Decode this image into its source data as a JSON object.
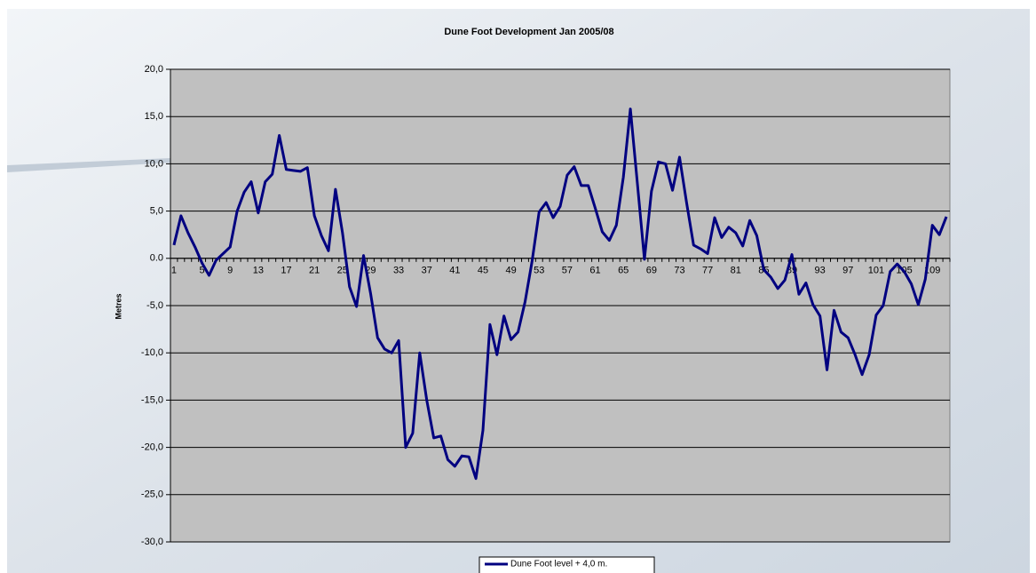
{
  "chart_data": {
    "type": "line",
    "title": "Dune Foot Development Jan 2005/08",
    "y_label": "Metres",
    "categories": [
      1,
      null,
      null,
      null,
      5,
      null,
      null,
      null,
      9,
      null,
      null,
      null,
      13,
      null,
      null,
      null,
      17,
      null,
      null,
      null,
      21,
      null,
      null,
      null,
      25,
      null,
      null,
      null,
      29,
      null,
      null,
      null,
      33,
      null,
      null,
      null,
      37,
      null,
      null,
      null,
      41,
      null,
      null,
      null,
      45,
      null,
      null,
      null,
      49,
      null,
      null,
      null,
      53,
      null,
      null,
      null,
      57,
      null,
      null,
      null,
      61,
      null,
      null,
      null,
      65,
      null,
      null,
      null,
      69,
      null,
      null,
      null,
      73,
      null,
      null,
      null,
      77,
      null,
      null,
      null,
      81,
      null,
      null,
      null,
      85,
      null,
      null,
      null,
      89,
      null,
      null,
      null,
      93,
      null,
      null,
      null,
      97,
      null,
      null,
      null,
      101,
      null,
      null,
      null,
      105,
      null,
      null,
      null,
      109,
      null,
      null
    ],
    "series": [
      {
        "name": "Dune Foot level + 4,0 m.",
        "color": "#000080",
        "values": [
          1.4,
          4.5,
          2.7,
          1.2,
          -0.5,
          -1.8,
          -0.2,
          0.5,
          1.2,
          5.0,
          7.0,
          8.1,
          4.8,
          8.1,
          8.9,
          13.0,
          9.4,
          9.3,
          9.2,
          9.6,
          4.5,
          2.4,
          0.8,
          7.3,
          2.7,
          -3.0,
          -5.1,
          0.3,
          -3.7,
          -8.4,
          -9.6,
          -10.0,
          -8.7,
          -20.0,
          -18.5,
          -10.0,
          -15.0,
          -19.0,
          -18.8,
          -21.3,
          -22.0,
          -20.9,
          -21.0,
          -23.3,
          -18.2,
          -7.0,
          -10.2,
          -6.1,
          -8.6,
          -7.8,
          -4.6,
          -0.3,
          4.9,
          5.9,
          4.3,
          5.5,
          8.8,
          9.7,
          7.7,
          7.7,
          5.3,
          2.8,
          1.9,
          3.5,
          8.6,
          15.8,
          7.9,
          -0.1,
          7.1,
          10.2,
          10.0,
          7.2,
          10.7,
          5.9,
          1.4,
          1.0,
          0.5,
          4.3,
          2.2,
          3.3,
          2.7,
          1.3,
          4.0,
          2.4,
          -1.2,
          -2.0,
          -3.2,
          -2.3,
          0.4,
          -3.8,
          -2.6,
          -4.9,
          -6.1,
          -11.8,
          -5.5,
          -7.8,
          -8.4,
          -10.2,
          -12.3,
          -10.2,
          -6.0,
          -5.0,
          -1.4,
          -0.6,
          -1.4,
          -2.7,
          -4.9,
          -2.2,
          3.5,
          2.5,
          4.4
        ]
      }
    ],
    "ylim": [
      -30,
      20
    ],
    "yticks": [
      {
        "value": -30,
        "label": "-30,0"
      },
      {
        "value": -25,
        "label": "-25,0"
      },
      {
        "value": -20,
        "label": "-20,0"
      },
      {
        "value": -15,
        "label": "-15,0"
      },
      {
        "value": -10,
        "label": "-10,0"
      },
      {
        "value": -5,
        "label": "-5,0"
      },
      {
        "value": 0,
        "label": "0.0"
      },
      {
        "value": 5,
        "label": "5,0"
      },
      {
        "value": 10,
        "label": "10,0"
      },
      {
        "value": 15,
        "label": "15,0"
      },
      {
        "value": 20,
        "label": "20,0"
      }
    ],
    "grid": true,
    "plot_background": "#c0c0c0",
    "legend": "bottom"
  }
}
